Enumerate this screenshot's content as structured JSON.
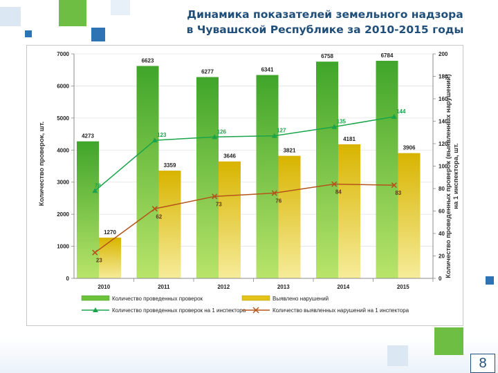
{
  "title": {
    "line1": "Динамика показателей земельного надзора",
    "line2": "в Чувашской Республике за 2010-2015 годы"
  },
  "page_number": "8",
  "colors": {
    "bar_green": "#6cc33a",
    "bar_yellow": "#e3c21a",
    "line_green": "#1aa44a",
    "line_brown": "#b5541a",
    "title": "#1f4e79",
    "deco_green": "#6fbe44",
    "deco_blue": "#2e74b5"
  },
  "chart_data": {
    "type": "bar+line",
    "categories": [
      "2010",
      "2011",
      "2012",
      "2013",
      "2014",
      "2015"
    ],
    "series": [
      {
        "name": "Количество проведенных проверок",
        "kind": "bar",
        "axis": "left",
        "values": [
          4273,
          6623,
          6277,
          6341,
          6758,
          6784
        ],
        "labels": [
          "4273",
          "6623",
          "6277",
          "6341",
          "6758",
          "6784"
        ]
      },
      {
        "name": "Выявлено нарушений",
        "kind": "bar",
        "axis": "left",
        "values": [
          1270,
          3359,
          3646,
          3821,
          4181,
          3906
        ],
        "labels": [
          "1270",
          "3359",
          "3646",
          "3821",
          "4181",
          "3906"
        ]
      },
      {
        "name": "Количество проведенных проверок на 1 инспектора",
        "kind": "line",
        "axis": "right",
        "marker": "triangle",
        "values": [
          78,
          123,
          126,
          127,
          135,
          144
        ],
        "labels": [
          "78",
          "123",
          "126",
          "127",
          "135",
          "144"
        ]
      },
      {
        "name": "Количество выявленных нарушений на 1 инспектора",
        "kind": "line",
        "axis": "right",
        "marker": "x",
        "values": [
          23,
          62,
          73,
          76,
          84,
          83
        ],
        "labels": [
          "23",
          "62",
          "73",
          "76",
          "84",
          "83"
        ]
      }
    ],
    "y_left": {
      "label": "Количество проверок, шт.",
      "min": 0,
      "max": 7000,
      "ticks": [
        "0",
        "1000",
        "2000",
        "3000",
        "4000",
        "5000",
        "6000",
        "7000"
      ]
    },
    "y_right": {
      "label_line1": "Количество проведенных проверок (выявленных нарушений)",
      "label_line2": "на 1 инспектора, шт.",
      "min": 0,
      "max": 200,
      "ticks": [
        "0",
        "20",
        "40",
        "60",
        "80",
        "100",
        "120",
        "140",
        "160",
        "180",
        "200"
      ]
    },
    "legend": [
      "Количество проведенных проверок",
      "Выявлено нарушений",
      "Количество проведенных проверок на 1 инспектора",
      "Количество выявленных нарушений на 1 инспектора"
    ],
    "legend_position": "bottom"
  }
}
